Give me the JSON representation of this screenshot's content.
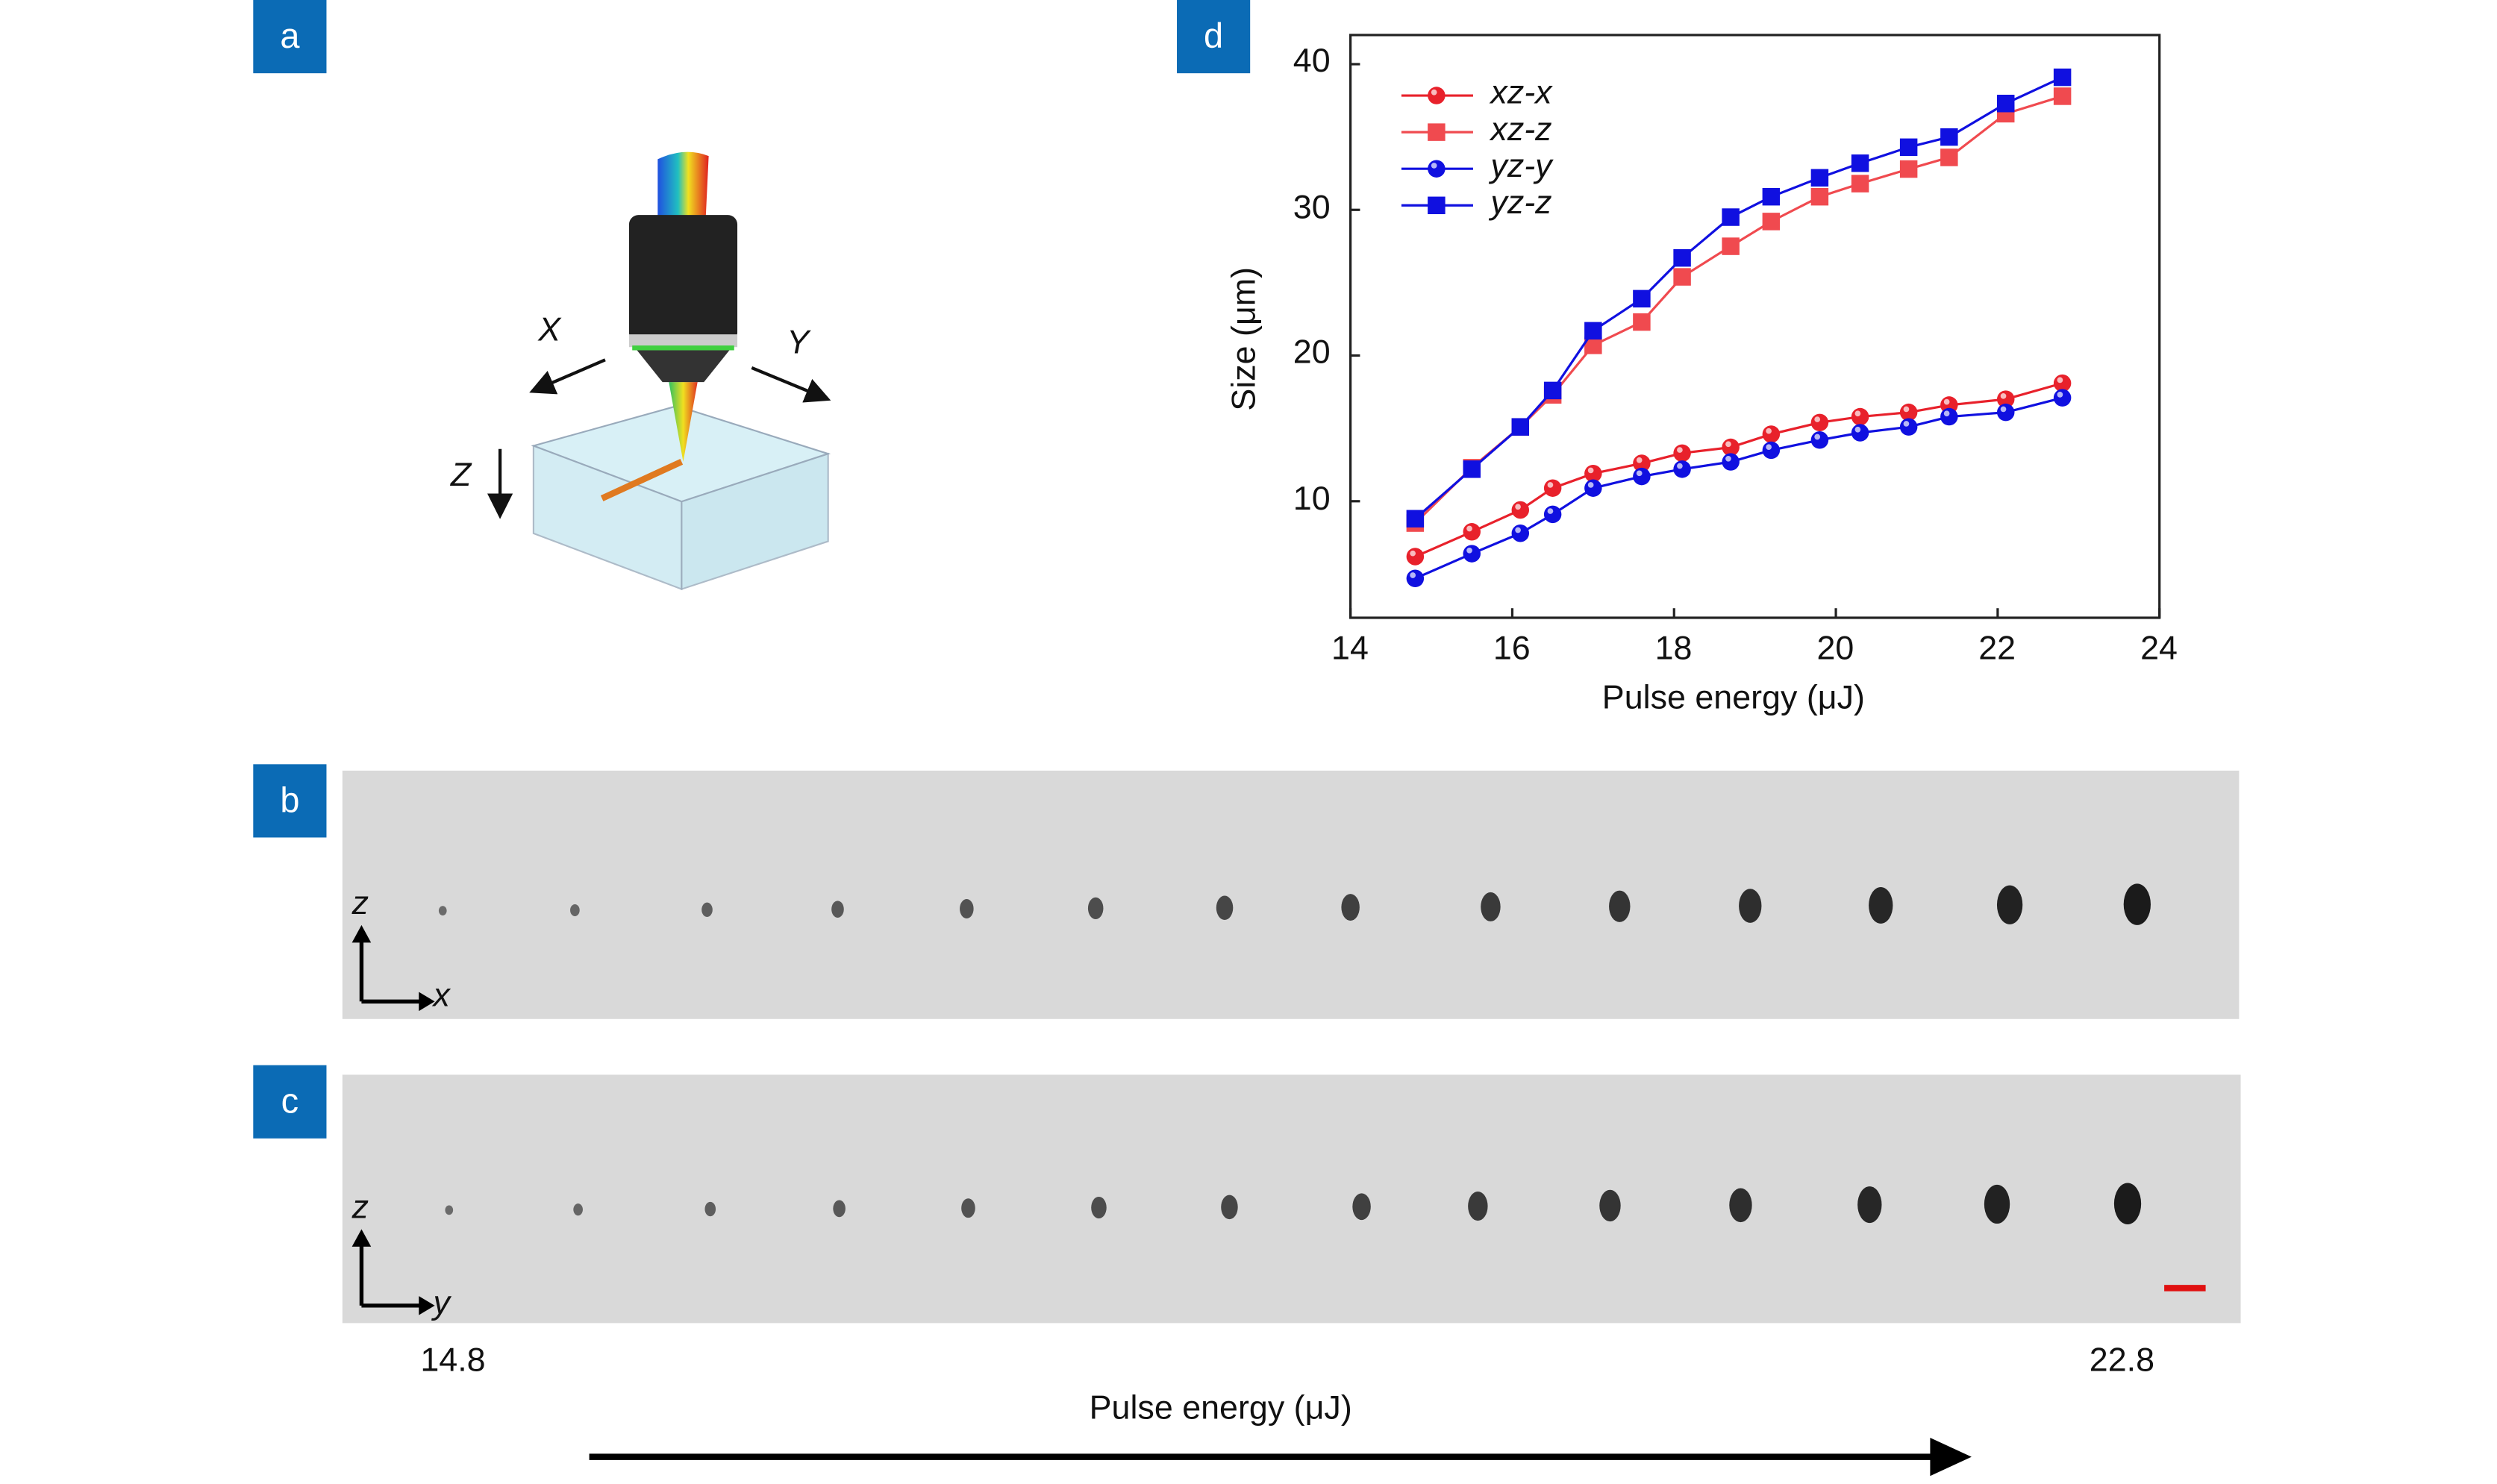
{
  "panels": {
    "a": "a",
    "b": "b",
    "c": "c",
    "d": "d"
  },
  "schematic": {
    "axis_x": "X",
    "axis_y": "Y",
    "axis_z": "Z"
  },
  "image_b": {
    "axis_vertical": "z",
    "axis_horizontal": "x",
    "spot_count": 14
  },
  "image_c": {
    "axis_vertical": "z",
    "axis_horizontal": "y",
    "spot_count": 14
  },
  "bottom": {
    "start_value": "14.8",
    "end_value": "22.8",
    "label": "Pulse energy (μJ)"
  },
  "colors": {
    "red": "#e8212b",
    "light_red": "#f04a4f",
    "blue": "#1010e0",
    "panel_label": "#0b6bb5",
    "scale_bar": "#e01010"
  },
  "chart_data": {
    "type": "line",
    "title": "",
    "xlabel": "Pulse energy (μJ)",
    "ylabel": "Size (μm)",
    "xlim": [
      14,
      24
    ],
    "ylim": [
      2,
      42
    ],
    "xticks": [
      "14",
      "16",
      "18",
      "20",
      "22",
      "24"
    ],
    "yticks": [
      "10",
      "20",
      "30",
      "40"
    ],
    "legend_position": "top-left",
    "x": [
      14.8,
      15.5,
      16.1,
      16.5,
      17.0,
      17.6,
      18.1,
      18.7,
      19.2,
      19.8,
      20.3,
      20.9,
      21.4,
      22.1,
      22.8
    ],
    "series": [
      {
        "name": "xz-x",
        "marker": "circle",
        "color": "#e8212b",
        "values": [
          6.2,
          7.9,
          9.4,
          10.9,
          11.9,
          12.6,
          13.3,
          13.7,
          14.6,
          15.4,
          15.8,
          16.1,
          16.6,
          17.0,
          18.1
        ]
      },
      {
        "name": "xz-z",
        "marker": "square",
        "color": "#f04a4f",
        "values": [
          8.5,
          12.3,
          15.1,
          17.3,
          20.7,
          22.3,
          25.4,
          27.5,
          29.2,
          30.9,
          31.8,
          32.8,
          33.6,
          36.6,
          37.8
        ]
      },
      {
        "name": "yz-y",
        "marker": "circle",
        "color": "#1010e0",
        "values": [
          4.7,
          6.4,
          7.8,
          9.1,
          10.9,
          11.7,
          12.2,
          12.7,
          13.5,
          14.2,
          14.7,
          15.1,
          15.8,
          16.1,
          17.1
        ]
      },
      {
        "name": "yz-z",
        "marker": "square",
        "color": "#1010e0",
        "values": [
          8.8,
          12.2,
          15.1,
          17.6,
          21.7,
          23.9,
          26.7,
          29.5,
          30.9,
          32.2,
          33.2,
          34.3,
          35.0,
          37.3,
          39.1
        ]
      }
    ]
  }
}
